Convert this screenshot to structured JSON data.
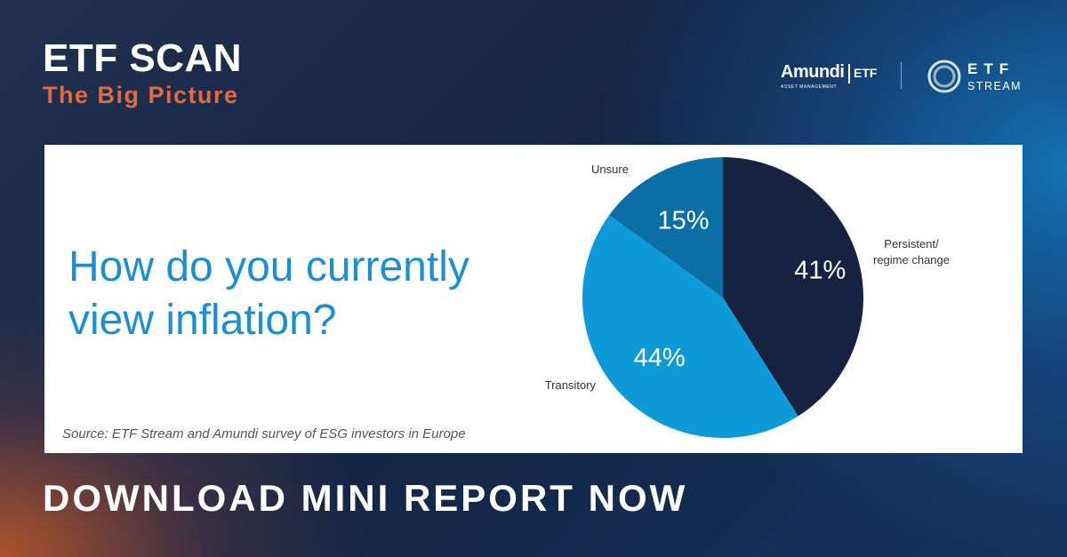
{
  "header": {
    "title": "ETF SCAN",
    "subtitle": "The Big Picture"
  },
  "logos": {
    "amundi_name": "Amundi",
    "amundi_sub": "ASSET MANAGEMENT",
    "amundi_etf": "ETF",
    "stream_etf": "ETF",
    "stream_word": "STREAM"
  },
  "card": {
    "question_line1": "How do you currently",
    "question_line2": "view inflation?",
    "source": "Source: ETF Stream and Amundi survey of ESG investors in Europe"
  },
  "cta": "DOWNLOAD MINI REPORT NOW",
  "chart_data": {
    "type": "pie",
    "title": "How do you currently view inflation?",
    "slices": [
      {
        "label": "Persistent/ regime change",
        "label_lines": [
          "Persistent/",
          "regime change"
        ],
        "value": 41,
        "value_label": "41%",
        "color": "#16223f"
      },
      {
        "label": "Transitory",
        "label_lines": [
          "Transitory"
        ],
        "value": 44,
        "value_label": "44%",
        "color": "#0c9ad8"
      },
      {
        "label": "Unsure",
        "label_lines": [
          "Unsure"
        ],
        "value": 15,
        "value_label": "15%",
        "color": "#0b6fa6"
      }
    ]
  }
}
